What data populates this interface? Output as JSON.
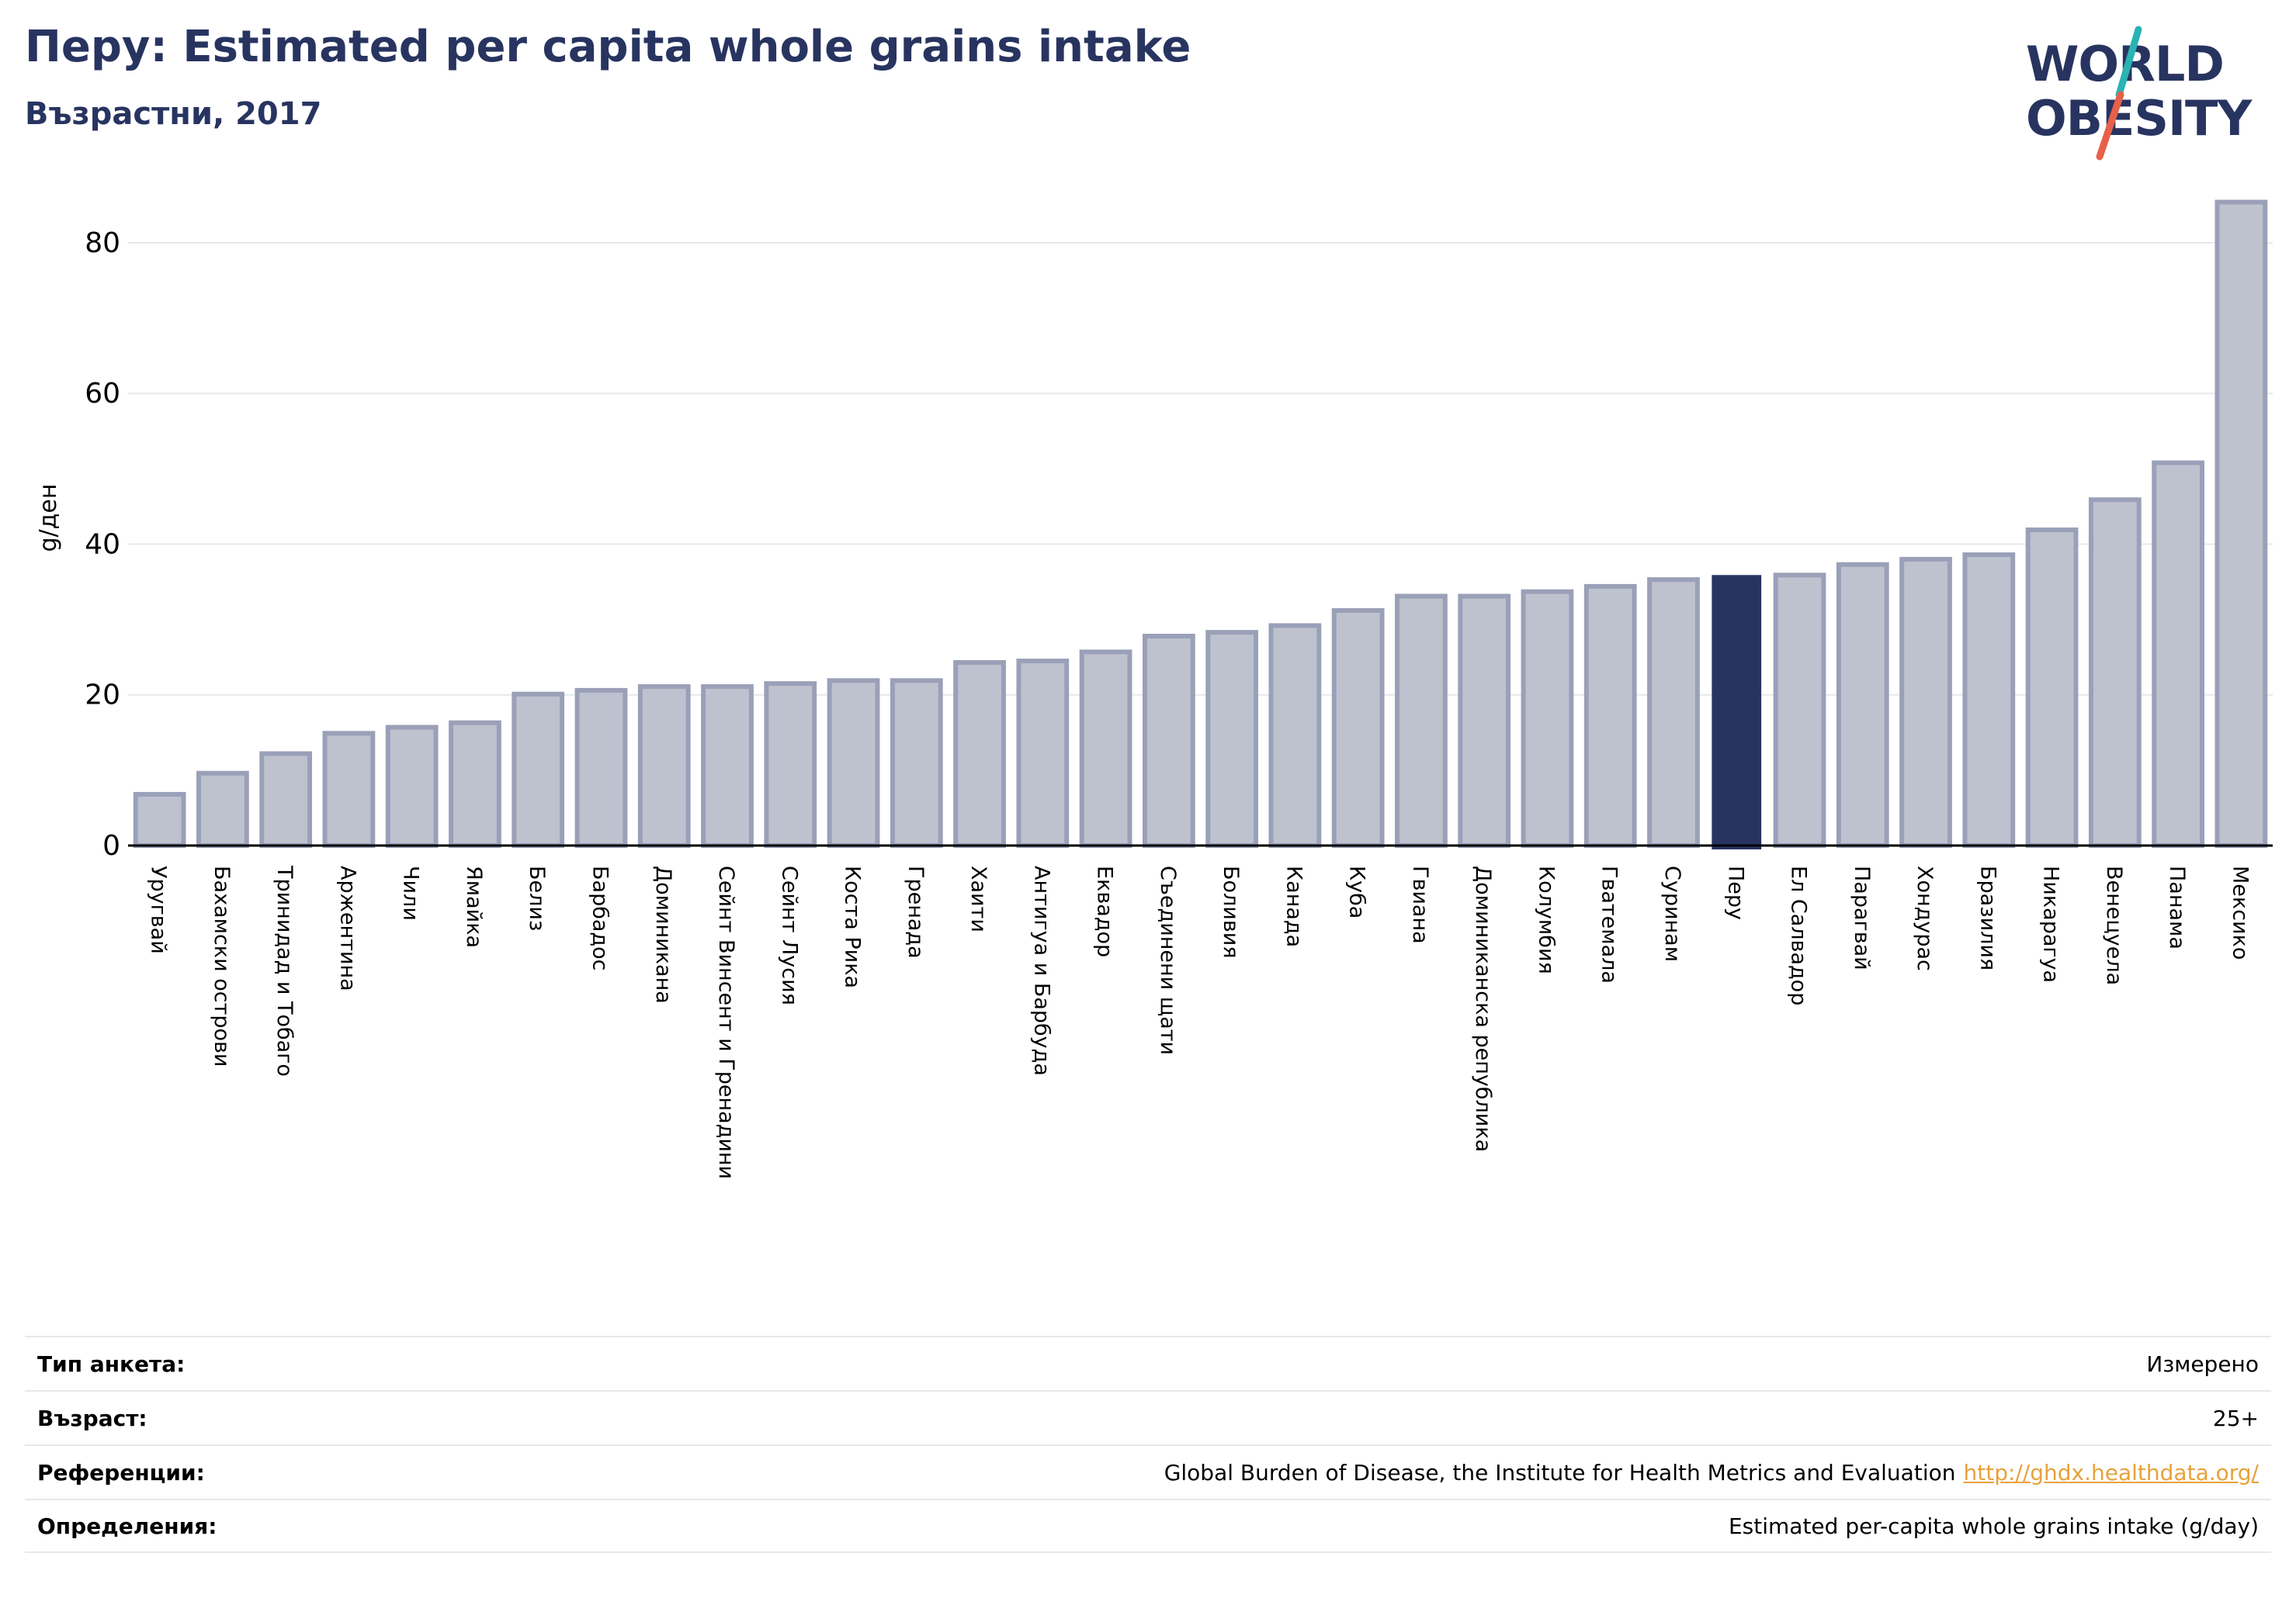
{
  "header": {
    "title": "Перу: Estimated per capita whole grains intake",
    "subtitle": "Възрастни, 2017"
  },
  "logo": {
    "line1": "WORLD",
    "line2": "OBESITY",
    "colors": {
      "text": "#283460",
      "slash_top": "#2ab3b4",
      "slash_bottom": "#e8604a"
    }
  },
  "colors": {
    "bar": "#bec2cf",
    "bar_border": "#9aa0b8",
    "highlight": "#283460",
    "grid": "#e6e8ee",
    "axis": "#000000"
  },
  "chart_data": {
    "type": "bar",
    "ylabel": "g/ден",
    "ylim": [
      0,
      87
    ],
    "yticks": [
      0,
      20,
      40,
      60,
      80
    ],
    "grid": true,
    "highlight": "Перу",
    "categories": [
      "Уругвай",
      "Бахамски острови",
      "Тринидад и Тобаго",
      "Аржентина",
      "Чили",
      "Ямайка",
      "Белиз",
      "Барбадос",
      "Доминикана",
      "Сейнт Винсент и Гренадини",
      "Сейнт Лусия",
      "Коста Рика",
      "Гренада",
      "Хаити",
      "Антигуа и Барбуда",
      "Еквадор",
      "Съединени щати",
      "Боливия",
      "Канада",
      "Куба",
      "Гвиана",
      "Доминиканска република",
      "Колумбия",
      "Гватемала",
      "Суринам",
      "Перу",
      "Ел Салвадор",
      "Парагвай",
      "Хондурас",
      "Бразилия",
      "Никарагуа",
      "Венецуела",
      "Панама",
      "Мексико"
    ],
    "values": [
      6.8,
      9.6,
      12.2,
      14.9,
      15.7,
      16.3,
      20.1,
      20.6,
      21.1,
      21.1,
      21.5,
      21.9,
      21.9,
      24.3,
      24.5,
      25.7,
      27.8,
      28.3,
      29.2,
      31.2,
      33.1,
      33.1,
      33.7,
      34.4,
      35.3,
      35.8,
      35.9,
      37.3,
      38.0,
      38.6,
      41.9,
      45.9,
      50.8,
      85.4
    ]
  },
  "meta": [
    {
      "label": "Тип анкета:",
      "value": "Измерено"
    },
    {
      "label": "Възраст:",
      "value": "25+"
    },
    {
      "label": "Референции:",
      "value": "Global Burden of Disease, the Institute for Health Metrics and Evaluation",
      "link": "http://ghdx.healthdata.org/"
    },
    {
      "label": "Определения:",
      "value": "Estimated per-capita whole grains intake (g/day)"
    }
  ]
}
